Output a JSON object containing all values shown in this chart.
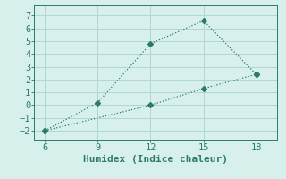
{
  "xlabel": "Humidex (Indice chaleur)",
  "bg_color": "#d8f0ec",
  "grid_color": "#b0d8d0",
  "line_color": "#2a7a70",
  "line1_x": [
    6,
    9,
    12,
    15,
    18
  ],
  "line1_y": [
    -2.0,
    0.2,
    4.8,
    6.6,
    2.4
  ],
  "line2_x": [
    6,
    12,
    15,
    18
  ],
  "line2_y": [
    -2.0,
    0.0,
    1.3,
    2.4
  ],
  "xlim": [
    5.4,
    19.2
  ],
  "ylim": [
    -2.7,
    7.8
  ],
  "xticks": [
    6,
    9,
    12,
    15,
    18
  ],
  "yticks": [
    -2,
    -1,
    0,
    1,
    2,
    3,
    4,
    5,
    6,
    7
  ],
  "xlabel_fontsize": 8,
  "tick_fontsize": 7.5,
  "markersize": 3
}
